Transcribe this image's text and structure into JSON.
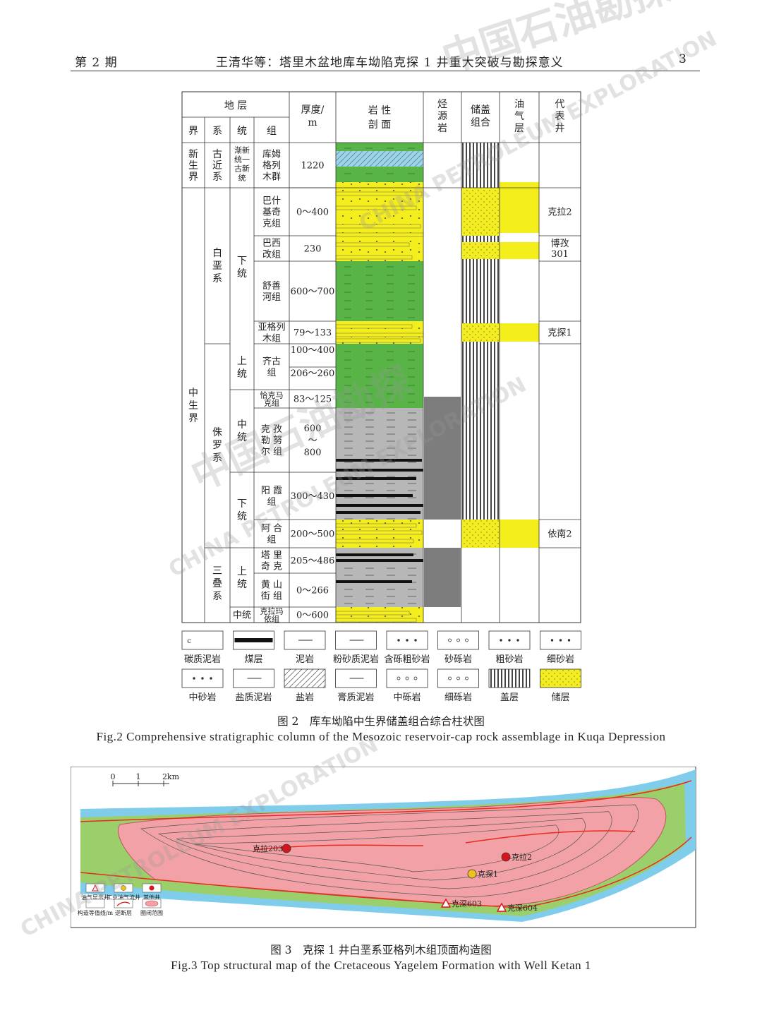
{
  "header": {
    "issue": "第 2 期",
    "title": "王清华等：塔里木盆地库车坳陷克探 1 井重大突破与勘探意义",
    "page": "3"
  },
  "watermarks": [
    "中国石油勘探",
    "CHINA PETROLEUM EXPLORATION"
  ],
  "figure2": {
    "col_headers": {
      "strata": "地 层",
      "era": "界",
      "system": "系",
      "series": "统",
      "formation": "组",
      "thickness": [
        "厚度/",
        "m"
      ],
      "lithology": [
        "岩 性",
        "剖 面"
      ],
      "source": [
        "烃",
        "源",
        "岩"
      ],
      "assemblage": [
        "储盖",
        "组合"
      ],
      "oilgas": [
        "油",
        "气",
        "层"
      ],
      "wells": [
        "代",
        "表",
        "井"
      ]
    },
    "eras": [
      [
        "新",
        "生",
        "界"
      ],
      [
        "中",
        "生",
        "界"
      ]
    ],
    "systems": [
      [
        "古",
        "近",
        "系"
      ],
      [
        "白",
        "垩",
        "系"
      ],
      [
        "侏",
        "罗",
        "系"
      ],
      [
        "三",
        "叠",
        "系"
      ]
    ],
    "series": [
      [
        "渐新",
        "统一",
        "古新",
        "统"
      ],
      [
        "下",
        "统"
      ],
      [
        "上",
        "统"
      ],
      [
        "中",
        "统"
      ],
      [
        "下",
        "统"
      ],
      [
        "上",
        "统"
      ],
      [
        "中统"
      ]
    ],
    "formations": [
      {
        "name": [
          "库姆",
          "格列",
          "木群"
        ],
        "thickness": [
          "1220"
        ]
      },
      {
        "name": [
          "巴什",
          "基奇",
          "克组"
        ],
        "thickness": [
          "0～400"
        ],
        "well": "克拉2"
      },
      {
        "name": [
          "巴西",
          "改组"
        ],
        "thickness": [
          "230"
        ],
        "well": [
          "博孜",
          "301"
        ]
      },
      {
        "name": [
          "舒善",
          "河组"
        ],
        "thickness": [
          "600～700"
        ]
      },
      {
        "name": [
          "亚格列",
          "木组"
        ],
        "thickness": [
          "79～133"
        ],
        "well": "克探1"
      },
      {
        "name": [
          "齐古",
          "组"
        ],
        "thickness": [
          "100～400",
          "206～260"
        ]
      },
      {
        "name": [
          "恰克马",
          "克组"
        ],
        "thickness": [
          "83～125"
        ]
      },
      {
        "name": [
          "克 孜",
          "勒 努",
          "尔 组"
        ],
        "thickness": [
          "600",
          "～",
          "800"
        ]
      },
      {
        "name": [
          "阳 霞",
          "组"
        ],
        "thickness": [
          "300～430"
        ]
      },
      {
        "name": [
          "阿 合",
          "组"
        ],
        "thickness": [
          "200～500"
        ],
        "well": "依南2"
      },
      {
        "name": [
          "塔 里",
          "奇 克"
        ],
        "thickness": [
          "205～486"
        ]
      },
      {
        "name": [
          "黄 山",
          "街 组"
        ],
        "thickness": [
          "0～266"
        ]
      },
      {
        "name": [
          "克拉玛",
          "依组"
        ],
        "thickness": [
          "0～600"
        ]
      }
    ],
    "legend": [
      "碳质泥岩",
      "煤层",
      "泥岩",
      "粉砂质泥岩",
      "含砾粗砂岩",
      "砂砾岩",
      "粗砂岩",
      "细砂岩",
      "中砂岩",
      "盐质泥岩",
      "盐岩",
      "膏质泥岩",
      "中砾岩",
      "细砾岩",
      "盖层",
      "储层"
    ],
    "caption_cn": "图 2　库车坳陷中生界储盖组合综合柱状图",
    "caption_en": "Fig.2  Comprehensive stratigraphic column of the Mesozoic reservoir-cap rock assemblage in Kuqa Depression",
    "colors": {
      "sand": "#f4ee1c",
      "mud": "#58b447",
      "source": "#7d7d7d",
      "salt": "#9fd3e6"
    }
  },
  "figure3": {
    "scale": [
      "0",
      "1",
      "2km"
    ],
    "wells": [
      {
        "name": "克拉203",
        "type": "other"
      },
      {
        "name": "克拉2",
        "type": "other"
      },
      {
        "name": "克探1",
        "type": "industrial"
      },
      {
        "name": "克深603",
        "type": "show"
      },
      {
        "name": "克深604",
        "type": "show"
      }
    ],
    "legend": [
      "油气显示井",
      "工业油气流井",
      "其他井",
      "构造等值线/m",
      "逆断层",
      "圈闭范围"
    ],
    "caption_cn": "图 3　克探 1 井白垩系亚格列木组顶面构造图",
    "caption_en": "Fig.3  Top structural map of the Cretaceous Yagelem Formation with Well Ketan 1",
    "colors": {
      "trap": "#f2a2a6",
      "green": "#9bcf6c",
      "blue": "#7fcdea",
      "fault": "#e82a1e"
    }
  }
}
